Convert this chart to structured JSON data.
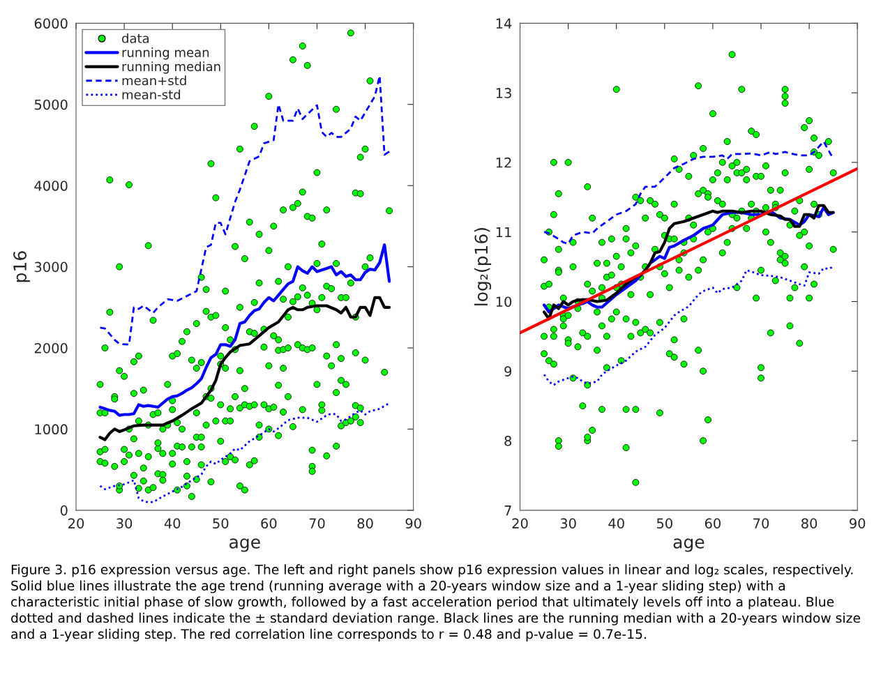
{
  "chart_data": [
    {
      "type": "scatter",
      "xlabel": "age",
      "ylabel": "p16",
      "xlim": [
        20,
        90
      ],
      "xticks": [
        20,
        30,
        40,
        50,
        60,
        70,
        80,
        90
      ],
      "ylim": [
        0,
        6000
      ],
      "yticks": [
        0,
        1000,
        2000,
        3000,
        4000,
        5000,
        6000
      ],
      "grid": false,
      "legend": "top left",
      "annotations": [
        "Figure 3. p16 expression versus age. The left and right panels show p16 expression values in linear and log₂ scales, respectively. Solid blue lines illustrate the age trend (running average with a 20-years window size and a 1-year sliding step) with a characteristic initial phase of slow growth, followed by a fast acceleration period that ultimately levels off into a plateau. Blue dotted and dashed lines indicate the ± standard deviation range. Black lines are the running median with a 20-years window size and a 1-year sliding step. The red correlation line corresponds to r = 0.48 and p-value = 0.7e-15."
      ],
      "series": [
        {
          "name": "data",
          "marker": "circle",
          "color": "#00ff00",
          "x": [
            25,
            25,
            25,
            25,
            26,
            26,
            26,
            26,
            27,
            27,
            28,
            28,
            28,
            29,
            29,
            29,
            29,
            30,
            30,
            30,
            31,
            31,
            31,
            32,
            32,
            32,
            32,
            33,
            33,
            33,
            33,
            34,
            34,
            34,
            35,
            35,
            35,
            35,
            36,
            36,
            36,
            37,
            37,
            37,
            37,
            38,
            38,
            38,
            38,
            39,
            39,
            40,
            40,
            40,
            40,
            40,
            41,
            41,
            41,
            41,
            42,
            42,
            42,
            43,
            43,
            43,
            43,
            44,
            44,
            44,
            45,
            45,
            45,
            45,
            45,
            46,
            46,
            46,
            46,
            46,
            47,
            47,
            47,
            47,
            48,
            48,
            48,
            48,
            48,
            49,
            49,
            49,
            50,
            50,
            50,
            50,
            51,
            51,
            51,
            51,
            51,
            52,
            52,
            52,
            52,
            53,
            53,
            53,
            53,
            54,
            54,
            54,
            54,
            54,
            55,
            55,
            55,
            55,
            56,
            56,
            56,
            56,
            57,
            57,
            57,
            57,
            57,
            58,
            58,
            58,
            58,
            59,
            59,
            59,
            60,
            60,
            60,
            60,
            60,
            61,
            61,
            61,
            62,
            62,
            62,
            62,
            62,
            63,
            63,
            63,
            63,
            63,
            64,
            64,
            64,
            64,
            65,
            65,
            65,
            65,
            66,
            66,
            66,
            67,
            67,
            67,
            67,
            67,
            68,
            68,
            68,
            68,
            69,
            69,
            69,
            69,
            69,
            69,
            70,
            70,
            70,
            70,
            71,
            71,
            71,
            71,
            72,
            72,
            72,
            72,
            73,
            73,
            74,
            74,
            74,
            74,
            74,
            75,
            75,
            75,
            75,
            76,
            76,
            76,
            77,
            77,
            77,
            78,
            78,
            78,
            78,
            78,
            79,
            79,
            79,
            79,
            80,
            80,
            80,
            81,
            81,
            84,
            85
          ],
          "values": [
            1550,
            1200,
            720,
            600,
            1200,
            2000,
            750,
            580,
            2440,
            4070,
            1400,
            1370,
            540,
            3000,
            1720,
            250,
            300,
            750,
            600,
            1650,
            4010,
            1000,
            680,
            1830,
            1440,
            880,
            430,
            1900,
            1100,
            700,
            270,
            1480,
            520,
            360,
            3260,
            1050,
            660,
            250,
            2340,
            280,
            1180,
            1200,
            760,
            830,
            450,
            1000,
            440,
            370,
            700,
            1550,
            1050,
            1900,
            1240,
            1350,
            700,
            570,
            1930,
            790,
            1080,
            250,
            2080,
            780,
            1000,
            2200,
            600,
            420,
            300,
            1850,
            780,
            170,
            2300,
            1750,
            1200,
            900,
            380,
            2870,
            1820,
            900,
            780,
            560,
            2720,
            2450,
            1400,
            1050,
            4270,
            2380,
            1500,
            1380,
            350,
            3850,
            2400,
            1100,
            1900,
            1800,
            1300,
            850,
            2700,
            2250,
            1750,
            1100,
            600,
            2100,
            1250,
            1100,
            660,
            3250,
            1980,
            1400,
            620,
            4450,
            2500,
            1720,
            1260,
            300,
            3100,
            1500,
            1300,
            250,
            3550,
            2200,
            1280,
            560,
            4730,
            2560,
            2180,
            1300,
            610,
            3400,
            2800,
            1050,
            900,
            2230,
            2010,
            1300,
            5100,
            3200,
            1780,
            1250,
            1000,
            3500,
            2150,
            1270,
            2820,
            2100,
            1970,
            1540,
            920,
            3700,
            2600,
            1980,
            1750,
            1210,
            3000,
            2380,
            2000,
            1400,
            5550,
            3730,
            2570,
            1030,
            3780,
            2630,
            2040,
            5720,
            3920,
            2740,
            2000,
            1240,
            5480,
            3620,
            2650,
            1980,
            3600,
            2550,
            2000,
            540,
            480,
            740,
            4160,
            3040,
            2470,
            1550,
            3280,
            2620,
            1300,
            1230,
            3700,
            2760,
            1900,
            670,
            2730,
            1780,
            4940,
            3040,
            2040,
            1450,
            790,
            2620,
            1870,
            1600,
            1040,
            2620,
            1550,
            1080,
            5880,
            2800,
            1100,
            3910,
            2380,
            1940,
            1290,
            1150,
            4350,
            3900,
            1260,
            1080,
            4450,
            3000,
            1850,
            5290,
            3110,
            1700,
            3690
          ]
        },
        {
          "name": "running mean",
          "type": "line",
          "line_style": "solid",
          "color": "#0000ff",
          "x": [
            25,
            26,
            27,
            28,
            29,
            30,
            31,
            32,
            33,
            34,
            35,
            36,
            37,
            38,
            39,
            40,
            41,
            42,
            43,
            44,
            45,
            46,
            47,
            48,
            49,
            50,
            51,
            52,
            53,
            54,
            55,
            56,
            57,
            58,
            59,
            60,
            61,
            62,
            63,
            64,
            65,
            66,
            67,
            68,
            69,
            70,
            71,
            72,
            73,
            74,
            75,
            76,
            77,
            78,
            79,
            80,
            81,
            82,
            83,
            84,
            85
          ],
          "values": [
            1270,
            1250,
            1230,
            1220,
            1170,
            1180,
            1180,
            1190,
            1300,
            1280,
            1290,
            1280,
            1270,
            1320,
            1370,
            1400,
            1410,
            1440,
            1480,
            1510,
            1560,
            1620,
            1760,
            1880,
            1920,
            2040,
            2040,
            2020,
            2100,
            2300,
            2320,
            2400,
            2460,
            2480,
            2560,
            2620,
            2580,
            2650,
            2720,
            2790,
            2820,
            3000,
            2950,
            2920,
            3000,
            2940,
            2960,
            2980,
            3000,
            2900,
            2940,
            2880,
            2900,
            2840,
            2840,
            2930,
            2970,
            2960,
            3050,
            3270,
            2820
          ]
        },
        {
          "name": "running median",
          "type": "line",
          "line_style": "solid",
          "color": "#000000",
          "x": [
            25,
            26,
            27,
            28,
            29,
            30,
            32,
            34,
            36,
            38,
            40,
            42,
            44,
            46,
            48,
            49,
            50,
            51,
            52,
            54,
            56,
            58,
            60,
            62,
            64,
            65,
            66,
            67,
            68,
            70,
            72,
            74,
            75,
            76,
            77,
            78,
            79,
            80,
            81,
            82,
            83,
            84,
            85
          ],
          "values": [
            900,
            870,
            950,
            1000,
            970,
            990,
            1040,
            1050,
            1050,
            1050,
            1100,
            1170,
            1250,
            1320,
            1480,
            1600,
            1800,
            1880,
            1950,
            2030,
            2050,
            2150,
            2250,
            2320,
            2470,
            2500,
            2470,
            2470,
            2500,
            2520,
            2520,
            2470,
            2430,
            2500,
            2380,
            2380,
            2500,
            2500,
            2400,
            2620,
            2620,
            2500,
            2500
          ]
        },
        {
          "name": "mean+std",
          "type": "line",
          "line_style": "dashed",
          "color": "#0000ff",
          "x": [
            25,
            26,
            28,
            29,
            31,
            32,
            33,
            34,
            36,
            37,
            39,
            41,
            43,
            45,
            47,
            48,
            49,
            50,
            51,
            53,
            54,
            56,
            58,
            59,
            61,
            62,
            63,
            65,
            66,
            67,
            68,
            70,
            71,
            72,
            73,
            74,
            75,
            77,
            78,
            79,
            80,
            81,
            82,
            83,
            84,
            85
          ],
          "values": [
            2250,
            2240,
            2100,
            2050,
            2040,
            2500,
            2480,
            2520,
            2430,
            2500,
            2600,
            2580,
            2640,
            2700,
            3240,
            3270,
            3540,
            3540,
            3400,
            3800,
            3950,
            4300,
            4360,
            4520,
            4560,
            5000,
            4800,
            4800,
            4950,
            4820,
            4880,
            4990,
            4660,
            4600,
            4650,
            4600,
            4600,
            4700,
            4850,
            4800,
            4900,
            5000,
            5100,
            5350,
            4380,
            4420
          ]
        },
        {
          "name": "mean-std",
          "type": "line",
          "line_style": "dotted",
          "color": "#0000ff",
          "x": [
            25,
            26,
            27,
            28,
            30,
            32,
            33,
            34,
            35,
            36,
            38,
            40,
            42,
            44,
            46,
            47,
            48,
            49,
            50,
            52,
            53,
            54,
            56,
            58,
            60,
            61,
            62,
            64,
            66,
            68,
            70,
            72,
            73,
            74,
            75,
            76,
            78,
            79,
            80,
            81,
            83,
            85
          ],
          "values": [
            300,
            260,
            280,
            300,
            320,
            370,
            150,
            110,
            100,
            100,
            170,
            230,
            290,
            370,
            440,
            540,
            600,
            570,
            620,
            700,
            760,
            740,
            850,
            920,
            1000,
            970,
            1010,
            1110,
            1140,
            1140,
            1090,
            1170,
            1190,
            1180,
            1100,
            1120,
            1200,
            1230,
            1180,
            1220,
            1250,
            1320
          ]
        }
      ]
    },
    {
      "type": "scatter",
      "xlabel": "age",
      "ylabel": "log₂(p16)",
      "xlim": [
        20,
        90
      ],
      "xticks": [
        20,
        30,
        40,
        50,
        60,
        70,
        80,
        90
      ],
      "ylim": [
        7,
        14
      ],
      "yticks": [
        7,
        8,
        9,
        10,
        11,
        12,
        13,
        14
      ],
      "grid": false,
      "legend": false,
      "series": [
        {
          "marker": "circle",
          "color": "#00ff00",
          "x": [
            25,
            25,
            25,
            25,
            26,
            26,
            26,
            26,
            27,
            27,
            27,
            27,
            27,
            28,
            28,
            28,
            28,
            28,
            28,
            29,
            29,
            29,
            29,
            30,
            30,
            30,
            30,
            31,
            31,
            31,
            32,
            32,
            32,
            33,
            33,
            33,
            34,
            34,
            34,
            34,
            34,
            34,
            35,
            35,
            35,
            36,
            36,
            36,
            37,
            37,
            37,
            37,
            37,
            38,
            38,
            38,
            38,
            39,
            39,
            39,
            40,
            40,
            40,
            40,
            41,
            41,
            41,
            42,
            42,
            42,
            42,
            42,
            43,
            43,
            43,
            44,
            44,
            44,
            44,
            44,
            45,
            45,
            45,
            46,
            46,
            46,
            47,
            47,
            47,
            48,
            48,
            49,
            49,
            49,
            49,
            50,
            50,
            50,
            51,
            51,
            51,
            52,
            52,
            52,
            52,
            52,
            53,
            53,
            53,
            54,
            54,
            54,
            54,
            55,
            55,
            55,
            56,
            56,
            56,
            57,
            57,
            57,
            57,
            58,
            58,
            58,
            58,
            58,
            59,
            59,
            59,
            59,
            60,
            60,
            60,
            61,
            61,
            62,
            62,
            62,
            63,
            63,
            63,
            64,
            64,
            64,
            64,
            65,
            65,
            65,
            65,
            66,
            66,
            66,
            67,
            67,
            67,
            68,
            68,
            68,
            69,
            69,
            69,
            69,
            70,
            70,
            70,
            70,
            71,
            71,
            71,
            72,
            72,
            72,
            73,
            73,
            73,
            74,
            74,
            74,
            75,
            75,
            75,
            75,
            75,
            75,
            76,
            76,
            76,
            77,
            77,
            78,
            78,
            78,
            79,
            79,
            79,
            80,
            80,
            80,
            80,
            81,
            81,
            81,
            81,
            82,
            82,
            84,
            85,
            85
          ],
          "values": [
            10.6,
            10.22,
            9.5,
            9.25,
            10.25,
            9.92,
            9.15,
            11.0,
            12.0,
            11.25,
            9.6,
            9.5,
            9.1,
            11.55,
            10.75,
            10.45,
            10.42,
            8.0,
            7.92,
            9.65,
            9.8,
            10.05,
            9.75,
            12.0,
            9.45,
            9.4,
            9.8,
            10.85,
            10.5,
            8.9,
            9.35,
            9.9,
            10.0,
            8.5,
            9.55,
            10.0,
            11.65,
            10.25,
            8.0,
            8.05,
            8.8,
            9.5,
            11.2,
            10.15,
            8.15,
            10.55,
            9.85,
            9.3,
            10.85,
            10.2,
            8.45,
            9.65,
            10.05,
            10.55,
            10.35,
            9.05,
            9.5,
            10.9,
            10.38,
            9.75,
            13.05,
            10.65,
            10.2,
            9.85,
            10.5,
            9.15,
            10.25,
            11.05,
            10.9,
            9.75,
            7.9,
            8.45,
            10.7,
            10.1,
            9.5,
            11.5,
            10.8,
            9.7,
            8.45,
            7.4,
            11.45,
            10.35,
            9.55,
            11.2,
            10.5,
            9.6,
            11.45,
            10.1,
            9.55,
            11.4,
            10.75,
            11.25,
            10.5,
            9.7,
            8.4,
            11.2,
            10.95,
            10.4,
            10.9,
            10.2,
            9.25,
            12.05,
            11.4,
            10.9,
            9.45,
            9.2,
            11.9,
            10.6,
            10.45,
            10.85,
            10.7,
            9.75,
            9.1,
            11.8,
            11.2,
            10.35,
            12.1,
            11.1,
            10.9,
            13.1,
            11.55,
            10.45,
            9.3,
            12.2,
            11.6,
            10.6,
            8.0,
            9.0,
            11.55,
            11.5,
            11.0,
            8.3,
            12.7,
            11.75,
            11.05,
            11.85,
            11.45,
            12.0,
            11.4,
            10.7,
            12.3,
            11.75,
            10.85,
            13.55,
            11.95,
            11.25,
            11.05,
            12.0,
            11.85,
            11.2,
            10.2,
            13.05,
            11.85,
            11.3,
            11.9,
            11.75,
            11.05,
            12.45,
            11.4,
            11.2,
            12.4,
            11.8,
            11.3,
            10.05,
            11.8,
            10.45,
            9.05,
            8.9,
            11.95,
            11.35,
            11.0,
            11.6,
            10.85,
            9.55,
            11.4,
            11.35,
            10.3,
            11.6,
            10.6,
            10.7,
            13.05,
            12.95,
            12.85,
            11.85,
            10.65,
            10.55,
            11.1,
            9.65,
            10.05,
            11.3,
            10.2,
            11.45,
            10.95,
            9.4,
            12.5,
            11.0,
            10.5,
            12.6,
            11.9,
            10.8,
            10.05,
            12.35,
            12.15,
            11.4,
            10.25,
            12.1,
            11.25,
            12.3,
            11.85,
            10.75
          ]
        },
        {
          "type": "line",
          "line_style": "solid",
          "color": "#0000ff",
          "x": [
            25,
            26,
            27,
            28,
            30,
            32,
            34,
            35,
            36,
            37,
            38,
            40,
            42,
            44,
            46,
            47,
            48,
            49,
            50,
            51,
            52,
            54,
            56,
            58,
            60,
            62,
            64,
            66,
            68,
            70,
            72,
            74,
            76,
            78,
            79,
            80,
            82,
            83,
            84,
            85
          ],
          "values": [
            9.95,
            9.85,
            9.9,
            9.95,
            9.9,
            9.95,
            10.0,
            9.95,
            9.92,
            9.92,
            9.98,
            10.1,
            10.2,
            10.3,
            10.45,
            10.55,
            10.6,
            10.65,
            10.62,
            10.78,
            10.8,
            10.88,
            10.95,
            11.05,
            11.1,
            11.25,
            11.28,
            11.28,
            11.25,
            11.25,
            11.3,
            11.2,
            11.18,
            11.1,
            11.15,
            11.25,
            11.22,
            11.35,
            11.25,
            11.28
          ]
        },
        {
          "type": "line",
          "line_style": "solid",
          "color": "#000000",
          "x": [
            25,
            26,
            27,
            28,
            29,
            30,
            31,
            32,
            34,
            36,
            38,
            40,
            42,
            44,
            45,
            46,
            47,
            48,
            49,
            50,
            51,
            52,
            54,
            56,
            58,
            60,
            61,
            62,
            64,
            66,
            68,
            70,
            72,
            74,
            75,
            76,
            77,
            78,
            79,
            80,
            81,
            82,
            83,
            84,
            85
          ],
          "values": [
            9.85,
            9.75,
            9.95,
            9.9,
            10.0,
            9.95,
            10.0,
            10.02,
            10.03,
            10.0,
            10.02,
            10.12,
            10.25,
            10.35,
            10.38,
            10.45,
            10.55,
            10.7,
            10.72,
            10.85,
            11.05,
            11.12,
            11.15,
            11.2,
            11.25,
            11.3,
            11.28,
            11.3,
            11.3,
            11.28,
            11.3,
            11.3,
            11.25,
            11.23,
            11.18,
            11.18,
            11.08,
            11.08,
            11.25,
            11.25,
            11.2,
            11.38,
            11.38,
            11.28,
            11.28
          ]
        },
        {
          "type": "line",
          "line_style": "dashed",
          "color": "#0000ff",
          "x": [
            25,
            26,
            28,
            29,
            30,
            31,
            33,
            35,
            36,
            38,
            40,
            42,
            44,
            45,
            46,
            48,
            50,
            52,
            54,
            56,
            58,
            60,
            62,
            63,
            64,
            66,
            68,
            70,
            72,
            73,
            75,
            76,
            78,
            80,
            81,
            83,
            85
          ],
          "values": [
            11.0,
            10.98,
            10.9,
            10.85,
            10.83,
            10.95,
            11.0,
            10.98,
            11.05,
            11.15,
            11.25,
            11.3,
            11.4,
            11.55,
            11.65,
            11.65,
            11.78,
            11.92,
            11.98,
            12.05,
            12.08,
            12.08,
            12.1,
            12.05,
            12.12,
            12.12,
            12.13,
            12.1,
            12.15,
            12.12,
            12.15,
            12.13,
            12.1,
            12.1,
            12.15,
            12.3,
            12.05
          ]
        },
        {
          "type": "line",
          "line_style": "dotted",
          "color": "#0000ff",
          "x": [
            25,
            26,
            27,
            28,
            30,
            31,
            32,
            33,
            34,
            36,
            37,
            38,
            40,
            42,
            44,
            46,
            48,
            50,
            52,
            53,
            55,
            57,
            58,
            60,
            61,
            62,
            64,
            66,
            67,
            68,
            70,
            72,
            74,
            76,
            78,
            79,
            80,
            82,
            83,
            84,
            85
          ],
          "values": [
            8.95,
            8.85,
            8.8,
            8.85,
            8.9,
            8.92,
            8.9,
            8.85,
            8.82,
            8.85,
            8.95,
            9.0,
            9.08,
            9.15,
            9.28,
            9.35,
            9.52,
            9.62,
            9.8,
            9.85,
            9.93,
            10.1,
            10.15,
            10.2,
            10.12,
            10.18,
            10.2,
            10.3,
            10.45,
            10.43,
            10.38,
            10.37,
            10.35,
            10.3,
            10.25,
            10.23,
            10.42,
            10.4,
            10.48,
            10.47,
            10.5
          ]
        },
        {
          "type": "line",
          "line_style": "solid",
          "color": "#ff0000",
          "x": [
            20,
            90
          ],
          "values": [
            9.55,
            11.91
          ]
        }
      ]
    }
  ]
}
